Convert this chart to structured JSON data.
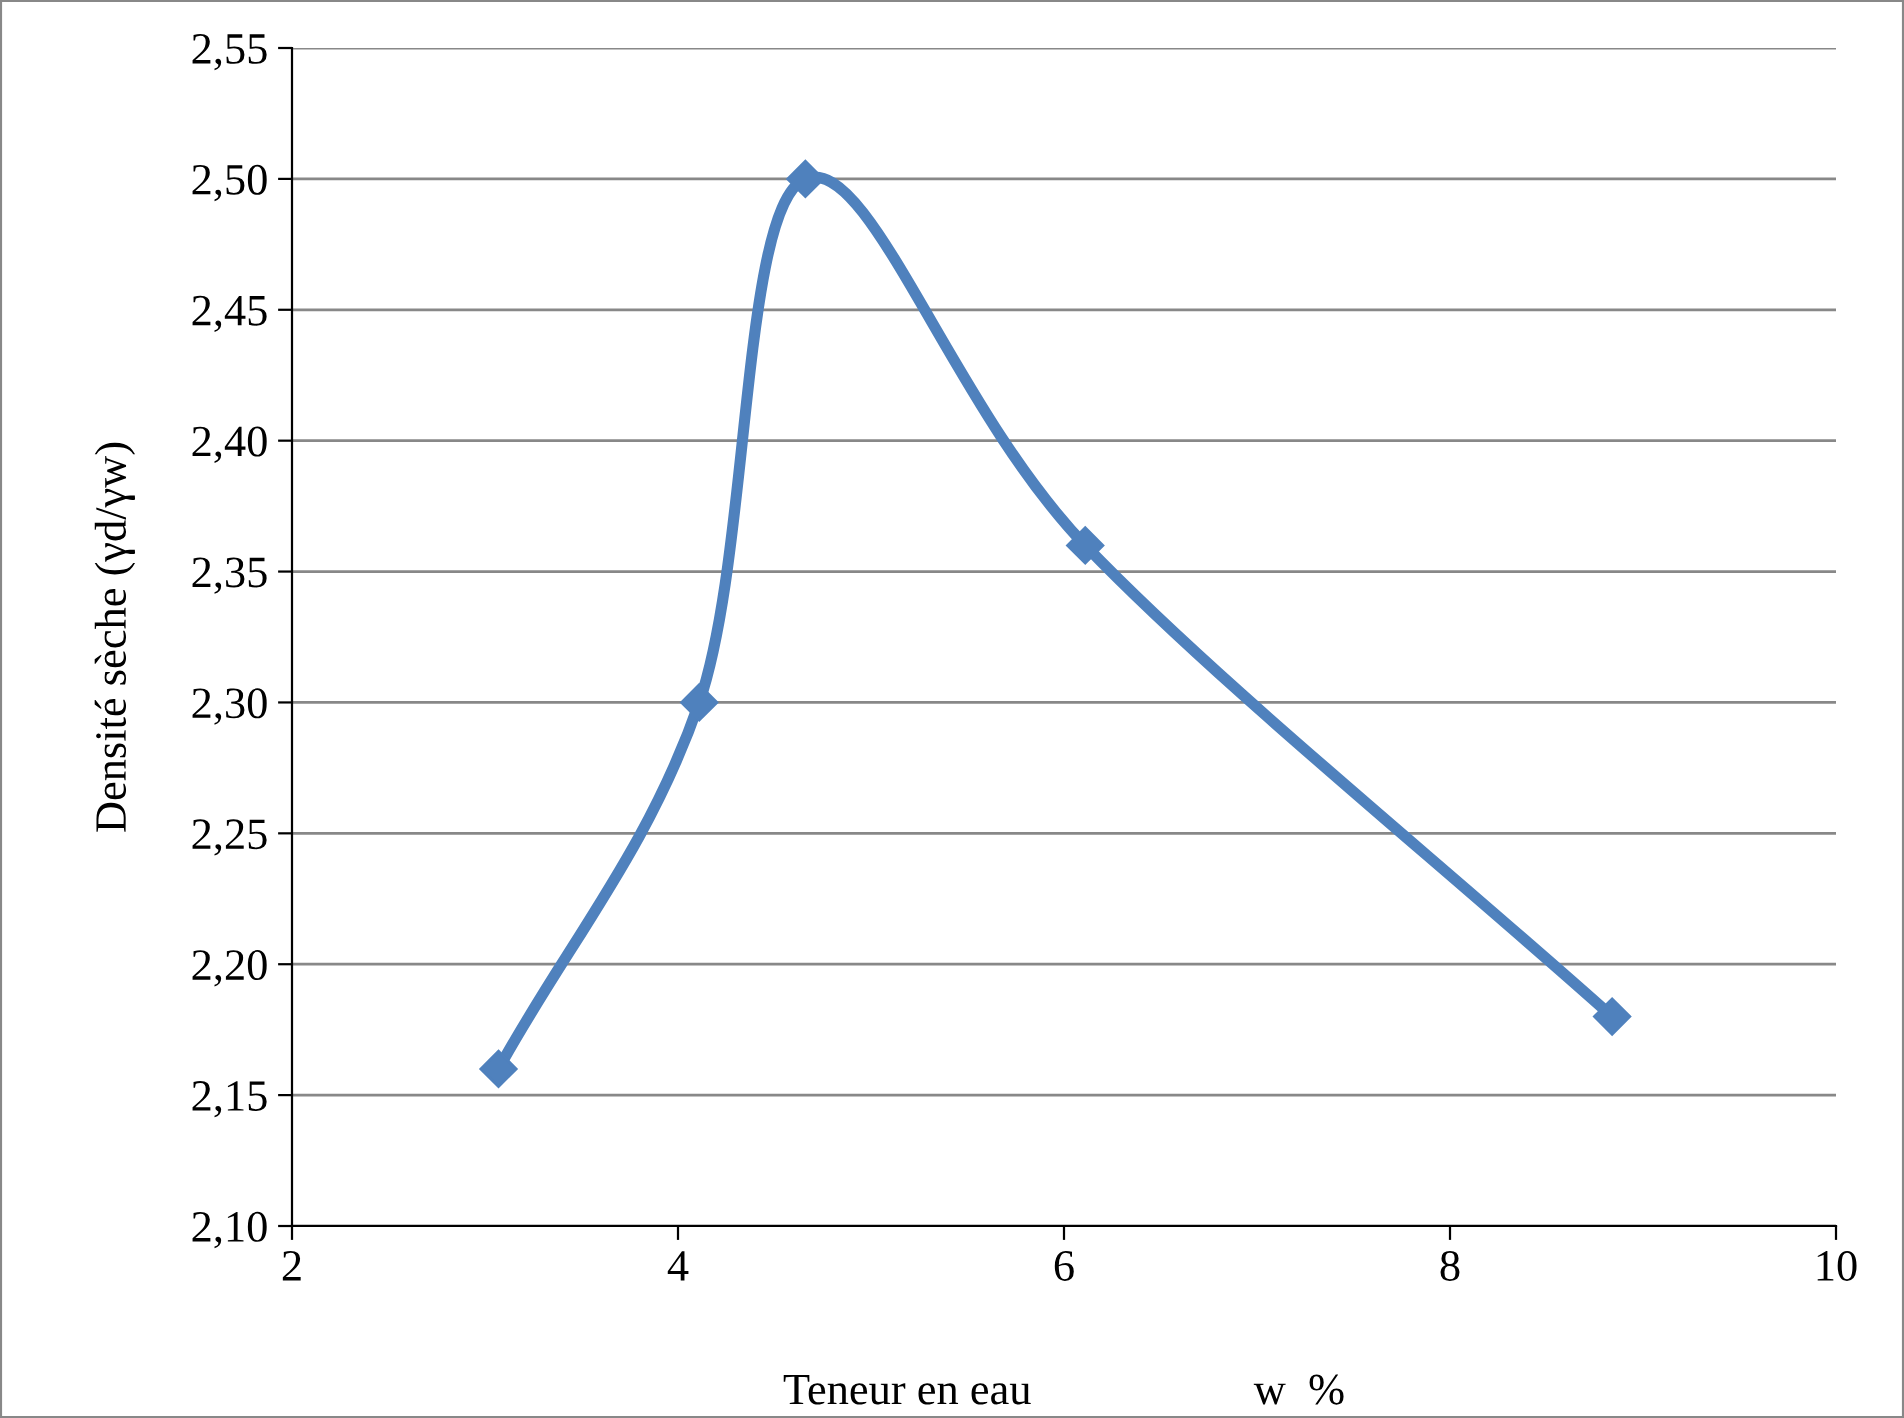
{
  "chart_data": {
    "type": "line",
    "xlabel": "Teneur en eau                    w  %",
    "ylabel": "Densité sèche (γd/γw)",
    "x": [
      3.07,
      4.11,
      4.66,
      6.11,
      8.84
    ],
    "series": [
      {
        "color": "#4f81bd",
        "values": [
          2.16,
          2.3,
          2.5,
          2.36,
          2.18
        ]
      }
    ],
    "xlim": [
      2,
      10
    ],
    "xticks": [
      2,
      4,
      6,
      8,
      10
    ],
    "ylim": [
      2.1,
      2.55
    ],
    "yticks": [
      {
        "value": 2.1,
        "label": "2,10"
      },
      {
        "value": 2.15,
        "label": "2,15"
      },
      {
        "value": 2.2,
        "label": "2,20"
      },
      {
        "value": 2.25,
        "label": "2,25"
      },
      {
        "value": 2.3,
        "label": "2,30"
      },
      {
        "value": 2.35,
        "label": "2,35"
      },
      {
        "value": 2.4,
        "label": "2,40"
      },
      {
        "value": 2.45,
        "label": "2,45"
      },
      {
        "value": 2.5,
        "label": "2,50"
      },
      {
        "value": 2.55,
        "label": "2,55"
      }
    ],
    "grid": "y",
    "marker": "diamond",
    "line_style": "solid"
  }
}
